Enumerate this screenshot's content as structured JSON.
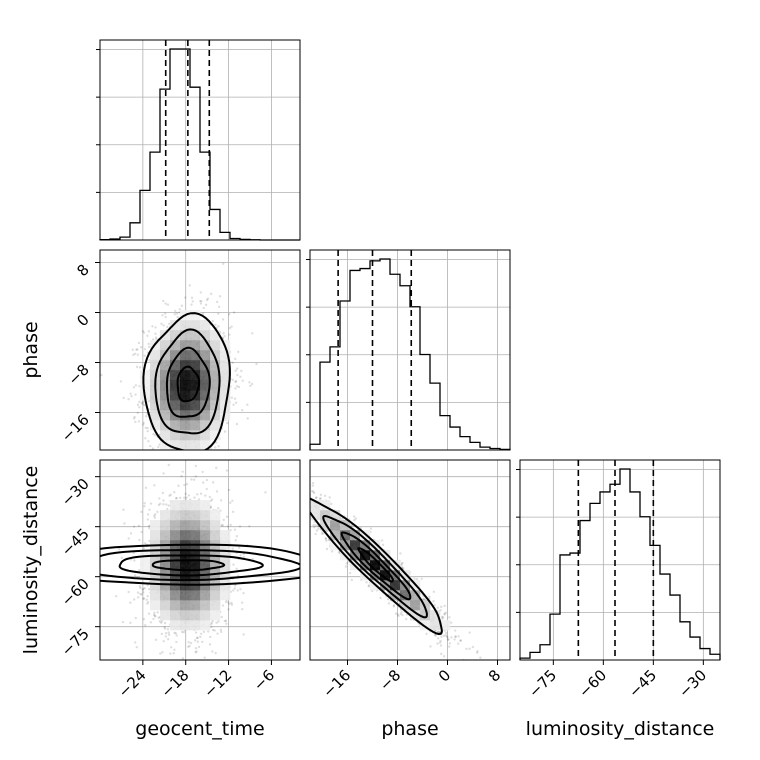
{
  "chart_data": {
    "type": "corner",
    "parameters": [
      {
        "name": "geocent_time",
        "label": "geocent_time",
        "range": [
          -30,
          -2
        ],
        "ticks": [
          -24,
          -18,
          -12,
          -6
        ],
        "tick_labels": [
          "−24",
          "−18",
          "−12",
          "−6"
        ],
        "hist_edges": [
          -30,
          -28.6,
          -27.2,
          -25.8,
          -24.4,
          -23,
          -21.6,
          -20.2,
          -18.8,
          -17.4,
          -16,
          -14.6,
          -13.2,
          -11.8,
          -10.4,
          -9,
          -7.6,
          -6.2,
          -4.8,
          -3.4,
          -2
        ],
        "hist_counts": [
          0.2,
          0.5,
          1.5,
          9,
          26,
          46,
          79,
          100,
          100,
          80,
          46,
          16,
          4,
          0.8,
          0.3,
          0.1,
          0,
          0,
          0,
          0
        ],
        "quantiles": [
          -20.8,
          -17.7,
          -14.7
        ]
      },
      {
        "name": "phase",
        "label": "phase",
        "range": [
          -22,
          10
        ],
        "ticks": [
          -16,
          -8,
          0,
          8
        ],
        "tick_labels": [
          "−16",
          "−8",
          "0",
          "8"
        ],
        "hist_edges": [
          -22,
          -20.4,
          -18.8,
          -17.2,
          -15.6,
          -14,
          -12.4,
          -10.8,
          -9.2,
          -7.6,
          -6,
          -4.4,
          -2.8,
          -1.2,
          0.4,
          2,
          3.6,
          5.2,
          6.8,
          8.4,
          10
        ],
        "hist_counts": [
          3,
          46,
          54,
          78,
          94,
          95,
          99,
          100,
          92,
          86,
          75,
          50,
          35,
          18,
          12,
          7,
          4,
          1.5,
          0.8,
          0.3
        ],
        "quantiles": [
          -17.5,
          -12,
          -5.8
        ]
      },
      {
        "name": "luminosity_distance",
        "label": "luminosity_distance",
        "range": [
          -85,
          -25
        ],
        "ticks": [
          -75,
          -60,
          -45,
          -30
        ],
        "tick_labels": [
          "−75",
          "−60",
          "−45",
          "−30"
        ],
        "hist_edges": [
          -85,
          -82,
          -79,
          -76,
          -73,
          -70,
          -67,
          -64,
          -61,
          -58,
          -55,
          -52,
          -49,
          -46,
          -43,
          -40,
          -37,
          -34,
          -31,
          -28,
          -25
        ],
        "hist_counts": [
          1,
          4,
          8,
          24,
          55,
          56,
          73,
          82,
          88,
          92,
          100,
          88,
          75,
          60,
          45,
          34,
          20,
          12,
          6,
          3
        ],
        "quantiles": [
          -67.5,
          -56.5,
          -45
        ]
      }
    ],
    "pairs": [
      {
        "x": "geocent_time",
        "y": "phase",
        "center": [
          -17.7,
          -11.5
        ],
        "sigma": [
          3,
          5.5
        ],
        "rho": 0.05
      },
      {
        "x": "geocent_time",
        "y": "luminosity_distance",
        "center": [
          -17.7,
          -56.5
        ],
        "sigma": [
          3,
          10
        ],
        "rho": 0.0
      },
      {
        "x": "phase",
        "y": "luminosity_distance",
        "center": [
          -11.5,
          -56.5
        ],
        "sigma": [
          5.5,
          10
        ],
        "rho": -0.95
      }
    ],
    "contour_levels_sigma": [
      0.5,
      1,
      1.5,
      2
    ]
  }
}
